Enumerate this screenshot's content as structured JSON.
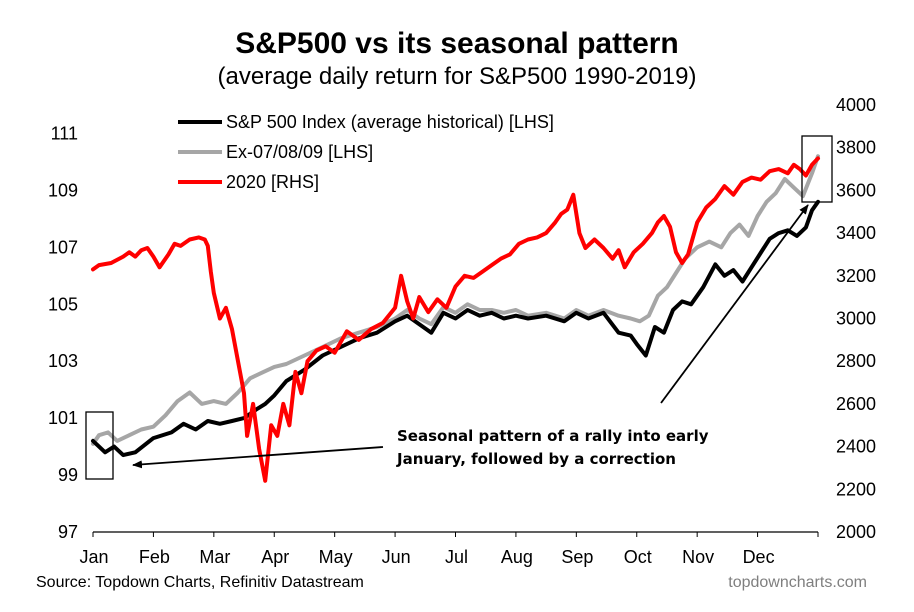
{
  "chart_data": {
    "type": "line",
    "title": "S&P500 vs its seasonal pattern",
    "subtitle": "(average daily return for S&P500 1990-2019)",
    "x_categories": [
      "Jan",
      "Feb",
      "Mar",
      "Apr",
      "May",
      "Jun",
      "Jul",
      "Aug",
      "Sep",
      "Oct",
      "Nov",
      "Dec"
    ],
    "y_left": {
      "range": [
        97,
        112
      ],
      "ticks": [
        "111",
        "109",
        "107",
        "105",
        "103",
        "101",
        "99",
        "97"
      ]
    },
    "y_right": {
      "range": [
        2000,
        4000
      ],
      "ticks": [
        "4000",
        "3800",
        "3600",
        "3400",
        "3200",
        "3000",
        "2800",
        "2600",
        "2400",
        "2200",
        "2000"
      ]
    },
    "legend_position": "top-left",
    "grid": false,
    "series": [
      {
        "name": "S&P 500 Index (average historical) [LHS]",
        "axis": "left",
        "color": "#000000",
        "points": [
          [
            0.0,
            100.2
          ],
          [
            0.1,
            100.0
          ],
          [
            0.2,
            99.8
          ],
          [
            0.35,
            100.0
          ],
          [
            0.5,
            99.7
          ],
          [
            0.7,
            99.8
          ],
          [
            1.0,
            100.3
          ],
          [
            1.3,
            100.5
          ],
          [
            1.5,
            100.8
          ],
          [
            1.7,
            100.6
          ],
          [
            1.9,
            100.9
          ],
          [
            2.1,
            100.8
          ],
          [
            2.3,
            100.9
          ],
          [
            2.5,
            101.0
          ],
          [
            2.7,
            101.3
          ],
          [
            2.85,
            101.5
          ],
          [
            3.0,
            101.8
          ],
          [
            3.2,
            102.3
          ],
          [
            3.5,
            102.7
          ],
          [
            3.8,
            103.2
          ],
          [
            4.1,
            103.5
          ],
          [
            4.4,
            103.8
          ],
          [
            4.7,
            104.0
          ],
          [
            5.0,
            104.4
          ],
          [
            5.2,
            104.6
          ],
          [
            5.4,
            104.3
          ],
          [
            5.6,
            104.0
          ],
          [
            5.8,
            104.7
          ],
          [
            6.0,
            104.5
          ],
          [
            6.2,
            104.8
          ],
          [
            6.4,
            104.6
          ],
          [
            6.6,
            104.7
          ],
          [
            6.8,
            104.5
          ],
          [
            7.0,
            104.6
          ],
          [
            7.2,
            104.5
          ],
          [
            7.5,
            104.6
          ],
          [
            7.8,
            104.4
          ],
          [
            8.0,
            104.7
          ],
          [
            8.2,
            104.5
          ],
          [
            8.45,
            104.7
          ],
          [
            8.7,
            104.0
          ],
          [
            8.9,
            103.9
          ],
          [
            9.0,
            103.6
          ],
          [
            9.15,
            103.2
          ],
          [
            9.3,
            104.2
          ],
          [
            9.45,
            104.0
          ],
          [
            9.6,
            104.8
          ],
          [
            9.75,
            105.1
          ],
          [
            9.9,
            105.0
          ],
          [
            10.1,
            105.6
          ],
          [
            10.3,
            106.4
          ],
          [
            10.45,
            106.0
          ],
          [
            10.6,
            106.2
          ],
          [
            10.75,
            105.8
          ],
          [
            10.9,
            106.3
          ],
          [
            11.05,
            106.8
          ],
          [
            11.2,
            107.3
          ],
          [
            11.35,
            107.5
          ],
          [
            11.5,
            107.6
          ],
          [
            11.65,
            107.4
          ],
          [
            11.8,
            107.7
          ],
          [
            11.9,
            108.3
          ],
          [
            12.0,
            108.6
          ]
        ]
      },
      {
        "name": "Ex-07/08/09 [LHS]",
        "axis": "left",
        "color": "#a6a6a6",
        "points": [
          [
            0.0,
            100.1
          ],
          [
            0.1,
            100.4
          ],
          [
            0.25,
            100.5
          ],
          [
            0.4,
            100.2
          ],
          [
            0.6,
            100.4
          ],
          [
            0.8,
            100.6
          ],
          [
            1.0,
            100.7
          ],
          [
            1.2,
            101.1
          ],
          [
            1.4,
            101.6
          ],
          [
            1.6,
            101.9
          ],
          [
            1.8,
            101.5
          ],
          [
            2.0,
            101.6
          ],
          [
            2.2,
            101.5
          ],
          [
            2.4,
            101.9
          ],
          [
            2.6,
            102.4
          ],
          [
            2.8,
            102.6
          ],
          [
            3.0,
            102.8
          ],
          [
            3.2,
            102.9
          ],
          [
            3.5,
            103.2
          ],
          [
            3.8,
            103.5
          ],
          [
            4.1,
            103.8
          ],
          [
            4.4,
            104.0
          ],
          [
            4.7,
            104.2
          ],
          [
            5.0,
            104.5
          ],
          [
            5.2,
            104.8
          ],
          [
            5.4,
            104.5
          ],
          [
            5.6,
            104.3
          ],
          [
            5.8,
            104.9
          ],
          [
            6.0,
            104.7
          ],
          [
            6.2,
            105.0
          ],
          [
            6.4,
            104.8
          ],
          [
            6.6,
            104.8
          ],
          [
            6.8,
            104.7
          ],
          [
            7.0,
            104.8
          ],
          [
            7.2,
            104.6
          ],
          [
            7.5,
            104.7
          ],
          [
            7.8,
            104.5
          ],
          [
            8.0,
            104.8
          ],
          [
            8.2,
            104.6
          ],
          [
            8.45,
            104.8
          ],
          [
            8.7,
            104.6
          ],
          [
            8.9,
            104.5
          ],
          [
            9.05,
            104.4
          ],
          [
            9.2,
            104.6
          ],
          [
            9.35,
            105.3
          ],
          [
            9.5,
            105.6
          ],
          [
            9.65,
            106.1
          ],
          [
            9.8,
            106.6
          ],
          [
            10.0,
            107.0
          ],
          [
            10.2,
            107.2
          ],
          [
            10.4,
            107.0
          ],
          [
            10.55,
            107.5
          ],
          [
            10.7,
            107.8
          ],
          [
            10.85,
            107.4
          ],
          [
            11.0,
            108.1
          ],
          [
            11.15,
            108.6
          ],
          [
            11.3,
            108.9
          ],
          [
            11.45,
            109.4
          ],
          [
            11.6,
            109.1
          ],
          [
            11.75,
            108.8
          ],
          [
            11.9,
            109.6
          ],
          [
            12.0,
            110.2
          ]
        ]
      },
      {
        "name": "2020 [RHS]",
        "axis": "right",
        "color": "#ff0000",
        "points": [
          [
            0.0,
            3230
          ],
          [
            0.1,
            3250
          ],
          [
            0.3,
            3260
          ],
          [
            0.5,
            3290
          ],
          [
            0.6,
            3310
          ],
          [
            0.7,
            3290
          ],
          [
            0.8,
            3320
          ],
          [
            0.9,
            3330
          ],
          [
            1.0,
            3290
          ],
          [
            1.1,
            3240
          ],
          [
            1.25,
            3300
          ],
          [
            1.35,
            3350
          ],
          [
            1.45,
            3340
          ],
          [
            1.6,
            3370
          ],
          [
            1.75,
            3380
          ],
          [
            1.85,
            3370
          ],
          [
            1.9,
            3340
          ],
          [
            1.95,
            3220
          ],
          [
            2.0,
            3120
          ],
          [
            2.1,
            3000
          ],
          [
            2.2,
            3050
          ],
          [
            2.3,
            2950
          ],
          [
            2.4,
            2800
          ],
          [
            2.5,
            2650
          ],
          [
            2.55,
            2450
          ],
          [
            2.65,
            2600
          ],
          [
            2.75,
            2390
          ],
          [
            2.85,
            2240
          ],
          [
            2.95,
            2500
          ],
          [
            3.05,
            2450
          ],
          [
            3.15,
            2600
          ],
          [
            3.25,
            2500
          ],
          [
            3.35,
            2750
          ],
          [
            3.45,
            2650
          ],
          [
            3.55,
            2800
          ],
          [
            3.7,
            2850
          ],
          [
            3.85,
            2870
          ],
          [
            4.0,
            2840
          ],
          [
            4.2,
            2940
          ],
          [
            4.4,
            2900
          ],
          [
            4.6,
            2950
          ],
          [
            4.8,
            2980
          ],
          [
            5.0,
            3050
          ],
          [
            5.1,
            3200
          ],
          [
            5.2,
            3080
          ],
          [
            5.3,
            3000
          ],
          [
            5.4,
            3100
          ],
          [
            5.55,
            3030
          ],
          [
            5.7,
            3090
          ],
          [
            5.85,
            3050
          ],
          [
            6.0,
            3150
          ],
          [
            6.15,
            3200
          ],
          [
            6.3,
            3190
          ],
          [
            6.45,
            3220
          ],
          [
            6.6,
            3250
          ],
          [
            6.75,
            3280
          ],
          [
            6.9,
            3300
          ],
          [
            7.05,
            3350
          ],
          [
            7.2,
            3370
          ],
          [
            7.35,
            3380
          ],
          [
            7.5,
            3400
          ],
          [
            7.65,
            3450
          ],
          [
            7.75,
            3490
          ],
          [
            7.85,
            3510
          ],
          [
            7.95,
            3580
          ],
          [
            8.05,
            3400
          ],
          [
            8.15,
            3330
          ],
          [
            8.3,
            3370
          ],
          [
            8.45,
            3330
          ],
          [
            8.6,
            3280
          ],
          [
            8.7,
            3320
          ],
          [
            8.8,
            3240
          ],
          [
            8.95,
            3310
          ],
          [
            9.1,
            3350
          ],
          [
            9.25,
            3400
          ],
          [
            9.35,
            3450
          ],
          [
            9.45,
            3480
          ],
          [
            9.55,
            3430
          ],
          [
            9.65,
            3310
          ],
          [
            9.75,
            3260
          ],
          [
            9.85,
            3300
          ],
          [
            10.0,
            3450
          ],
          [
            10.15,
            3520
          ],
          [
            10.3,
            3560
          ],
          [
            10.45,
            3620
          ],
          [
            10.6,
            3580
          ],
          [
            10.75,
            3640
          ],
          [
            10.9,
            3660
          ],
          [
            11.05,
            3650
          ],
          [
            11.2,
            3690
          ],
          [
            11.35,
            3700
          ],
          [
            11.5,
            3680
          ],
          [
            11.6,
            3720
          ],
          [
            11.7,
            3700
          ],
          [
            11.8,
            3670
          ],
          [
            11.9,
            3720
          ],
          [
            12.0,
            3750
          ]
        ]
      }
    ],
    "annotation": {
      "line1": "Seasonal pattern of a rally into early",
      "line2": "January, followed by a correction"
    }
  },
  "footer": {
    "source": "Source: Topdown Charts, Refinitiv Datastream",
    "brand": "topdowncharts.com"
  }
}
